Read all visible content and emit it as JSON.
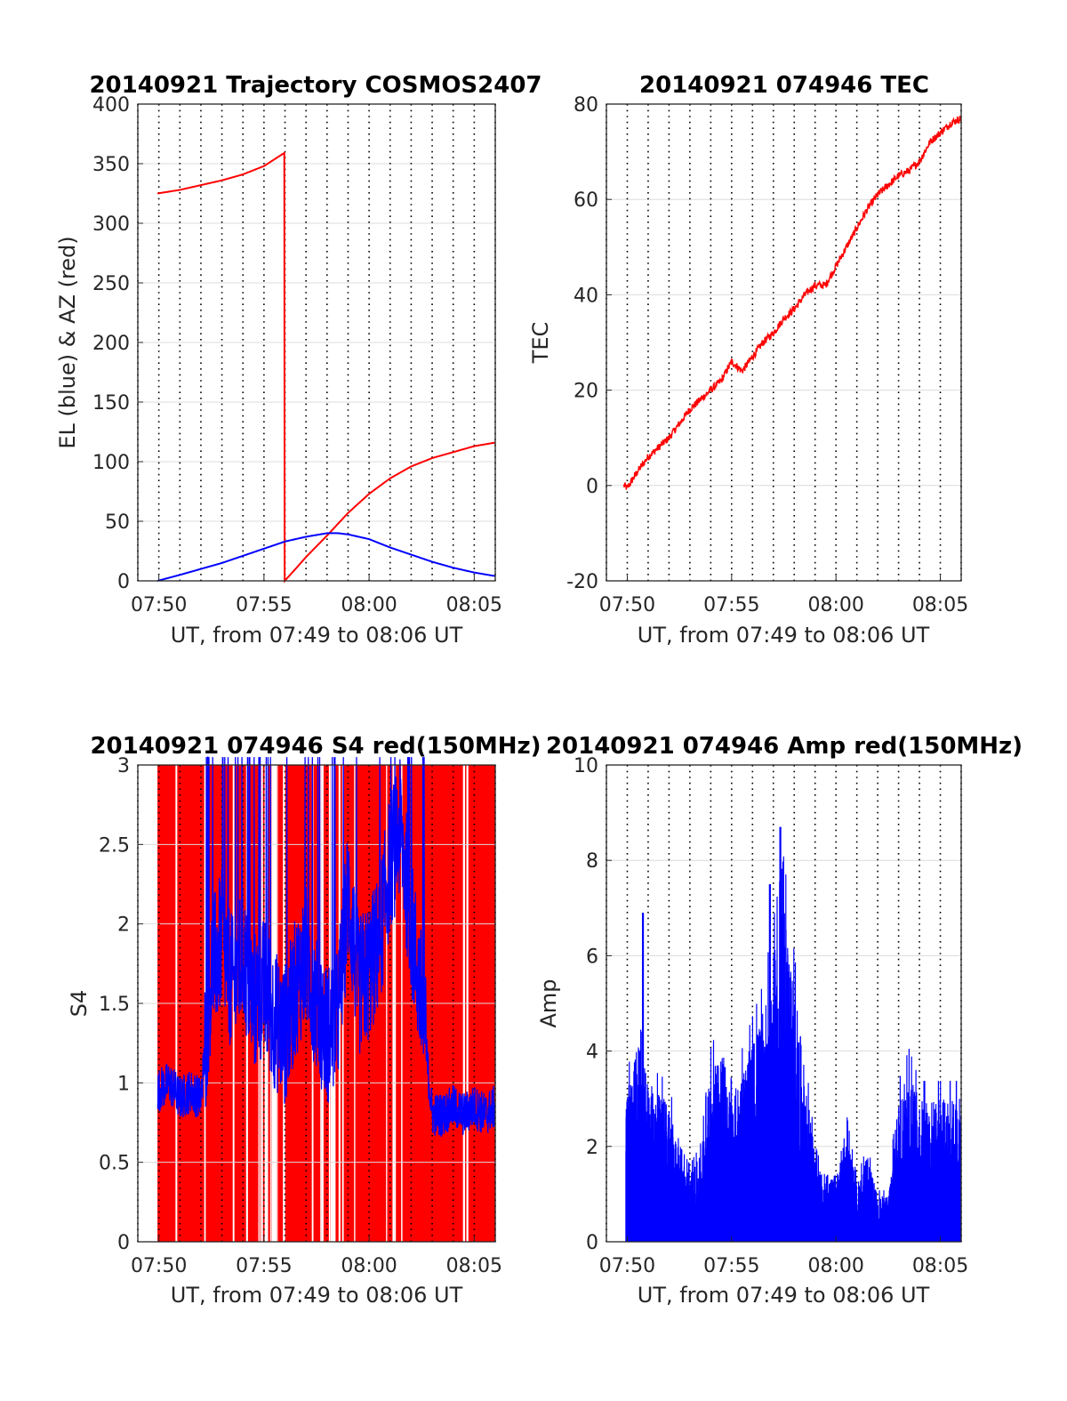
{
  "figure": {
    "panels": [
      {
        "id": "trajectory",
        "title": "20140921 Trajectory COSMOS2407",
        "xlabel": "UT, from 07:49 to 08:06 UT",
        "ylabel": "EL (blue) & AZ (red)"
      },
      {
        "id": "tec",
        "title": "20140921 074946 TEC",
        "xlabel": "UT, from 07:49 to 08:06 UT",
        "ylabel": "TEC"
      },
      {
        "id": "s4",
        "title": "20140921 074946 S4 red(150MHz)",
        "xlabel": "UT, from 07:49 to 08:06 UT",
        "ylabel": "S4"
      },
      {
        "id": "amp",
        "title": "20140921 074946 Amp red(150MHz)",
        "xlabel": "UT, from 07:49 to 08:06 UT",
        "ylabel": "Amp"
      }
    ]
  },
  "chart_data": [
    {
      "type": "line",
      "title": "20140921 Trajectory COSMOS2407",
      "xlabel": "UT, from 07:49 to 08:06 UT",
      "ylabel": "EL (blue) & AZ (red)",
      "xlim": [
        "07:49",
        "08:06"
      ],
      "ylim": [
        0,
        400
      ],
      "x_ticks": [
        "07:50",
        "07:55",
        "08:00",
        "08:05"
      ],
      "y_ticks": [
        0,
        50,
        100,
        150,
        200,
        250,
        300,
        350,
        400
      ],
      "grid": true,
      "series": [
        {
          "color": "#ff0000",
          "x": [
            "07:49:56",
            "07:51:00",
            "07:52:00",
            "07:53:00",
            "07:54:00",
            "07:55:00",
            "07:55:58",
            "07:55:59",
            "07:56:30",
            "07:57:00",
            "07:58:00",
            "07:59:00",
            "08:00:00",
            "08:01:00",
            "08:02:00",
            "08:03:00",
            "08:04:00",
            "08:05:00",
            "08:06:00"
          ],
          "values": [
            325,
            328,
            332,
            336,
            341,
            348,
            359,
            0,
            10,
            20,
            38,
            57,
            73,
            86,
            96,
            103,
            108,
            113,
            116
          ]
        },
        {
          "color": "#0000ff",
          "x": [
            "07:49:56",
            "07:51:00",
            "07:52:00",
            "07:53:00",
            "07:54:00",
            "07:55:00",
            "07:56:00",
            "07:57:00",
            "07:58:00",
            "07:58:30",
            "07:59:00",
            "08:00:00",
            "08:01:00",
            "08:02:00",
            "08:03:00",
            "08:04:00",
            "08:05:00",
            "08:06:00"
          ],
          "values": [
            0,
            5,
            10,
            15,
            21,
            27,
            33,
            37,
            40,
            40,
            39,
            35,
            28,
            22,
            16,
            11,
            7,
            4
          ]
        }
      ]
    },
    {
      "type": "line",
      "title": "20140921 074946 TEC",
      "xlabel": "UT, from 07:49 to 08:06 UT",
      "ylabel": "TEC",
      "xlim": [
        "07:49",
        "08:06"
      ],
      "ylim": [
        -20,
        80
      ],
      "x_ticks": [
        "07:50",
        "07:55",
        "08:00",
        "08:05"
      ],
      "y_ticks": [
        -20,
        0,
        20,
        40,
        60,
        80
      ],
      "grid": true,
      "series": [
        {
          "color": "#ff0000",
          "x": [
            "07:49:50",
            "07:50:00",
            "07:50:30",
            "07:51:00",
            "07:51:30",
            "07:52:00",
            "07:52:30",
            "07:53:00",
            "07:53:30",
            "07:54:00",
            "07:54:30",
            "07:55:00",
            "07:55:30",
            "07:56:00",
            "07:56:30",
            "07:57:00",
            "07:57:30",
            "07:58:00",
            "07:58:30",
            "07:59:00",
            "07:59:30",
            "08:00:00",
            "08:00:30",
            "08:01:00",
            "08:01:30",
            "08:02:00",
            "08:02:30",
            "08:03:00",
            "08:03:30",
            "08:04:00",
            "08:04:30",
            "08:05:00",
            "08:05:30",
            "08:06:00"
          ],
          "values": [
            0,
            -0.5,
            3,
            6,
            8,
            10,
            13,
            16,
            18,
            20,
            22,
            26,
            24,
            27,
            30,
            32,
            35,
            37,
            40,
            42,
            42,
            46,
            50,
            54,
            58,
            61,
            63,
            65,
            66,
            68,
            72,
            74,
            76,
            77
          ]
        }
      ]
    },
    {
      "type": "line",
      "title": "20140921 074946 S4 red(150MHz)",
      "xlabel": "UT, from 07:49 to 08:06 UT",
      "ylabel": "S4",
      "xlim": [
        "07:49",
        "08:06"
      ],
      "ylim": [
        0,
        3
      ],
      "x_ticks": [
        "07:50",
        "07:55",
        "08:00",
        "08:05"
      ],
      "y_ticks": [
        0,
        0.5,
        1,
        1.5,
        2,
        2.5,
        3
      ],
      "grid": true,
      "series": [
        {
          "color": "#ff0000",
          "x_range": [
            "07:49:56",
            "08:06:00"
          ],
          "values": "dense oscillation between 0 and >3 throughout the interval"
        },
        {
          "color": "#0000ff",
          "x": [
            "07:49:56",
            "07:50:30",
            "07:51:00",
            "07:51:30",
            "07:52:00",
            "07:52:30",
            "07:53:00",
            "07:53:30",
            "07:54:00",
            "07:54:30",
            "07:55:00",
            "07:55:30",
            "07:56:00",
            "07:56:30",
            "07:57:00",
            "07:57:30",
            "07:58:00",
            "07:58:30",
            "07:59:00",
            "07:59:30",
            "08:00:00",
            "08:00:30",
            "08:01:00",
            "08:01:30",
            "08:02:00",
            "08:02:30",
            "08:03:00",
            "08:03:30",
            "08:04:00",
            "08:04:30",
            "08:05:00",
            "08:05:30",
            "08:06:00"
          ],
          "values": [
            0.95,
            1.0,
            0.9,
            0.95,
            0.9,
            1.7,
            1.9,
            1.6,
            1.8,
            1.5,
            1.6,
            1.4,
            1.3,
            1.6,
            1.8,
            1.5,
            1.3,
            1.4,
            2.2,
            1.6,
            1.7,
            1.9,
            2.4,
            2.6,
            2.0,
            1.5,
            0.8,
            0.8,
            0.85,
            0.8,
            0.85,
            0.8,
            0.85
          ]
        }
      ]
    },
    {
      "type": "line",
      "title": "20140921 074946 Amp red(150MHz)",
      "xlabel": "UT, from 07:49 to 08:06 UT",
      "ylabel": "Amp",
      "xlim": [
        "07:49",
        "08:06"
      ],
      "ylim": [
        0,
        10
      ],
      "x_ticks": [
        "07:50",
        "07:55",
        "08:00",
        "08:05"
      ],
      "y_ticks": [
        0,
        2,
        4,
        6,
        8,
        10
      ],
      "grid": true,
      "series": [
        {
          "color": "#0000ff",
          "x": [
            "07:49:56",
            "07:50:30",
            "07:51:00",
            "07:51:30",
            "07:52:00",
            "07:52:30",
            "07:53:00",
            "07:53:30",
            "07:54:00",
            "07:54:30",
            "07:55:00",
            "07:55:30",
            "07:56:00",
            "07:56:30",
            "07:57:00",
            "07:57:30",
            "07:58:00",
            "07:58:30",
            "07:59:00",
            "07:59:30",
            "08:00:00",
            "08:00:30",
            "08:01:00",
            "08:01:30",
            "08:02:00",
            "08:02:30",
            "08:03:00",
            "08:03:30",
            "08:04:00",
            "08:04:30",
            "08:05:00",
            "08:05:30",
            "08:06:00"
          ],
          "values": [
            2.5,
            3.5,
            2.8,
            2.6,
            2.5,
            1.5,
            1.2,
            1.5,
            3.0,
            3.5,
            2.5,
            3.0,
            3.5,
            4.0,
            5.0,
            6.0,
            4.5,
            3.0,
            1.5,
            1.0,
            1.2,
            2.0,
            1.0,
            1.5,
            0.8,
            0.8,
            2.5,
            3.0,
            2.5,
            2.5,
            2.5,
            2.5,
            2.5
          ],
          "peaks": [
            [
              "07:50:45",
              6.9
            ],
            [
              "07:56:50",
              7.5
            ],
            [
              "07:57:20",
              8.7
            ]
          ]
        }
      ]
    }
  ]
}
